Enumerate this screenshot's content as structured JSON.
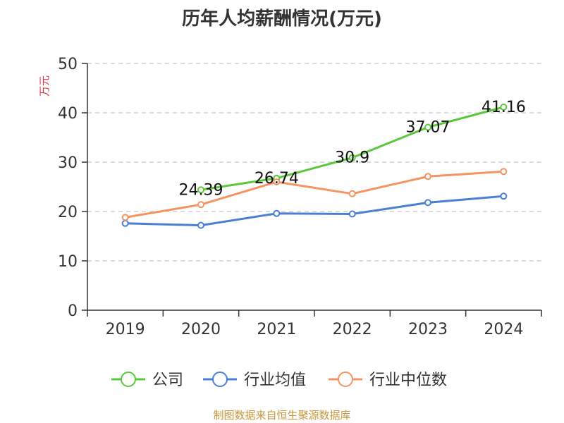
{
  "chart_data": {
    "type": "line",
    "title": "历年人均薪酬情况(万元)",
    "ylabel": "万元",
    "xlabel": "",
    "categories": [
      "2019",
      "2020",
      "2021",
      "2022",
      "2023",
      "2024"
    ],
    "ylim": [
      0,
      50
    ],
    "yticks": [
      0,
      10,
      20,
      30,
      40,
      50
    ],
    "grid": true,
    "legend_position": "bottom",
    "series": [
      {
        "name": "公司",
        "color": "#5ac83a",
        "values": [
          null,
          24.39,
          26.74,
          30.9,
          37.07,
          41.16
        ],
        "labels": [
          null,
          "24.39",
          "26.74",
          "30.9",
          "37.07",
          "41.16"
        ]
      },
      {
        "name": "行业均值",
        "color": "#4a7fd4",
        "values": [
          17.6,
          17.2,
          19.6,
          19.5,
          21.8,
          23.1
        ],
        "labels": []
      },
      {
        "name": "行业中位数",
        "color": "#f59363",
        "values": [
          18.8,
          21.4,
          26.0,
          23.6,
          27.1,
          28.1
        ],
        "labels": []
      }
    ],
    "source": "制图数据来自恒生聚源数据库"
  }
}
